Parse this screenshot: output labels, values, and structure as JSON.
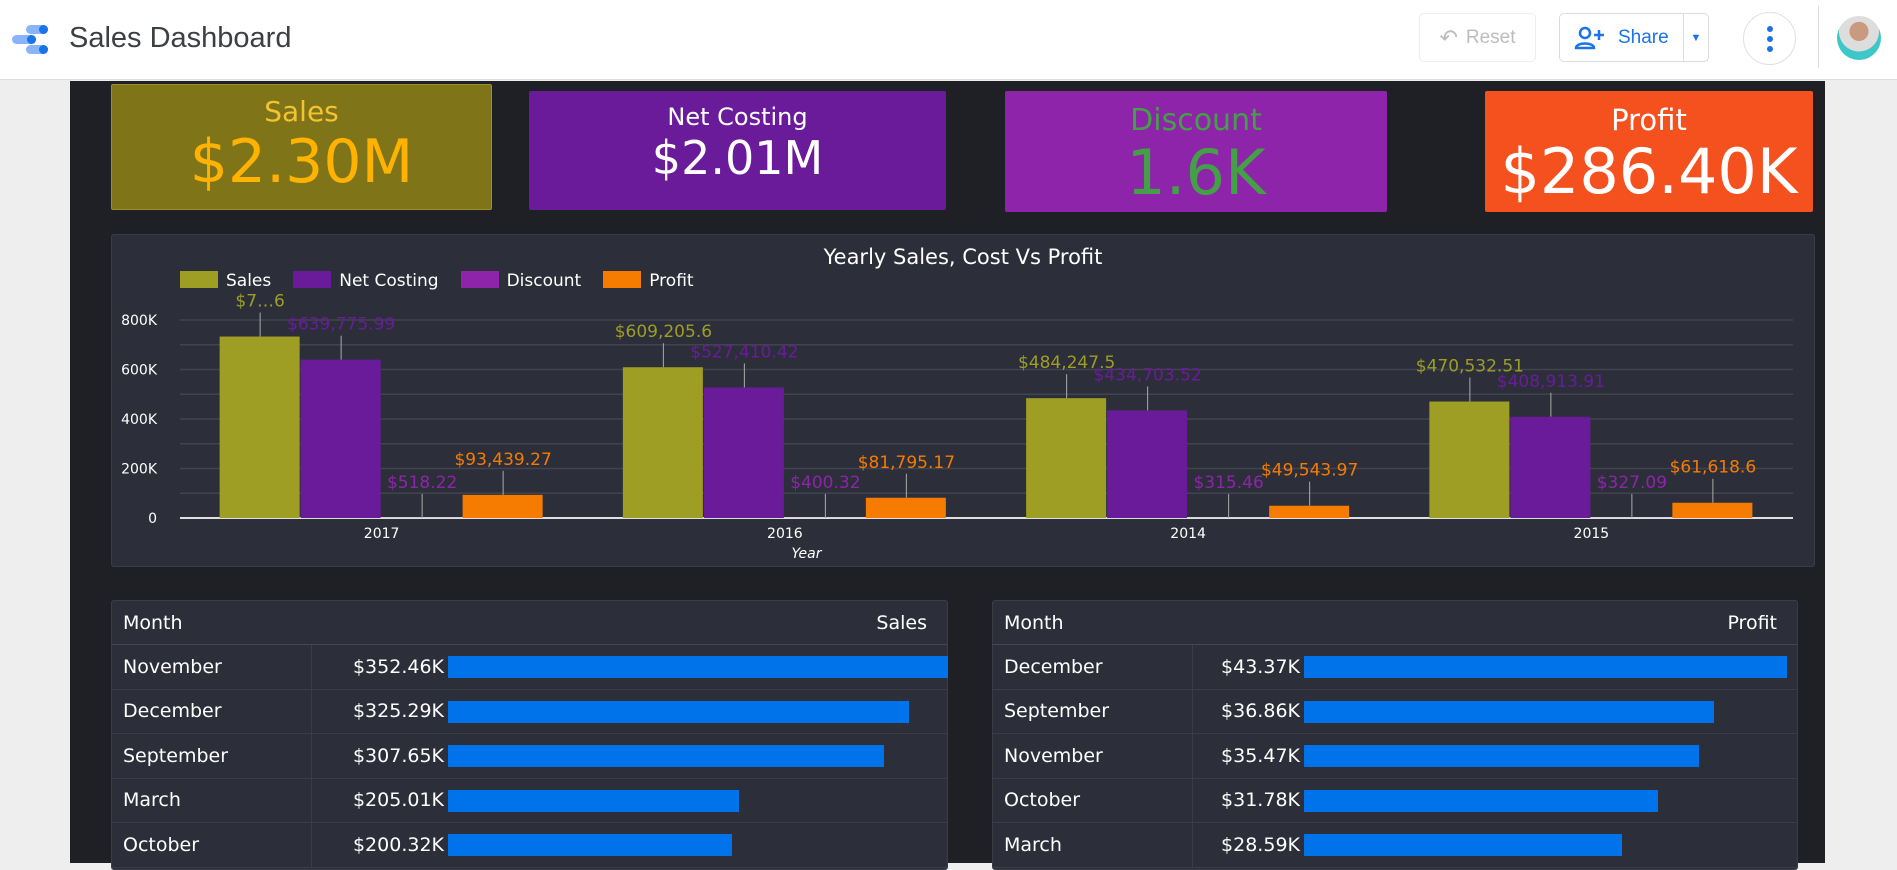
{
  "header": {
    "title": "Sales Dashboard",
    "reset_label": "Reset",
    "share_label": "Share"
  },
  "kpis": [
    {
      "label": "Sales",
      "value": "$2.30M",
      "bg": "#7f7417",
      "label_color": "#f4c430",
      "value_color": "#ffb300"
    },
    {
      "label": "Net Costing",
      "value": "$2.01M",
      "bg": "#6a1b9a",
      "label_color": "#ffffff",
      "value_color": "#ffffff"
    },
    {
      "label": "Discount",
      "value": "1.6K",
      "bg": "#8e24aa",
      "label_color": "#43a047",
      "value_color": "#43a047"
    },
    {
      "label": "Profit",
      "value": "$286.40K",
      "bg": "#f4511e",
      "label_color": "#ffffff",
      "value_color": "#ffffff"
    }
  ],
  "chart_data": {
    "type": "bar",
    "title": "Yearly Sales, Cost Vs Profit",
    "xlabel": "Year",
    "ylabel": "",
    "categories": [
      "2017",
      "2016",
      "2014",
      "2015"
    ],
    "ylim": [
      0,
      800000
    ],
    "yticks": [
      "0",
      "200K",
      "400K",
      "600K",
      "800K"
    ],
    "grid": true,
    "legend": "top-left",
    "series": [
      {
        "name": "Sales",
        "color": "#9e9d24",
        "values": [
          733215,
          609205.6,
          484247.5,
          470532.51
        ],
        "labels": [
          "$7…6",
          "$609,205.6",
          "$484,247.5",
          "$470,532.51"
        ]
      },
      {
        "name": "Net Costing",
        "color": "#6a1b9a",
        "values": [
          639775.99,
          527410.42,
          434703.52,
          408913.91
        ],
        "labels": [
          "$639,775.99",
          "$527,410.42",
          "$434,703.52",
          "$408,913.91"
        ]
      },
      {
        "name": "Discount",
        "color": "#8e24aa",
        "values": [
          518.22,
          400.32,
          315.46,
          327.09
        ],
        "labels": [
          "$518.22",
          "$400.32",
          "$315.46",
          "$327.09"
        ]
      },
      {
        "name": "Profit",
        "color": "#f57c00",
        "values": [
          93439.27,
          81795.17,
          49543.97,
          61618.6
        ],
        "labels": [
          "$93,439.27",
          "$81,795.17",
          "$49,543.97",
          "$61,618.6"
        ]
      }
    ]
  },
  "sales_table": {
    "col1": "Month",
    "col2": "Sales",
    "max": 352.46,
    "rows": [
      {
        "month": "November",
        "value": "$352.46K",
        "num": 352.46
      },
      {
        "month": "December",
        "value": "$325.29K",
        "num": 325.29
      },
      {
        "month": "September",
        "value": "$307.65K",
        "num": 307.65
      },
      {
        "month": "March",
        "value": "$205.01K",
        "num": 205.01
      },
      {
        "month": "October",
        "value": "$200.32K",
        "num": 200.32
      }
    ]
  },
  "profit_table": {
    "col1": "Month",
    "col2": "Profit",
    "max": 43.37,
    "rows": [
      {
        "month": "December",
        "value": "$43.37K",
        "num": 43.37
      },
      {
        "month": "September",
        "value": "$36.86K",
        "num": 36.86
      },
      {
        "month": "November",
        "value": "$35.47K",
        "num": 35.47
      },
      {
        "month": "October",
        "value": "$31.78K",
        "num": 31.78
      },
      {
        "month": "March",
        "value": "$28.59K",
        "num": 28.59
      }
    ]
  }
}
